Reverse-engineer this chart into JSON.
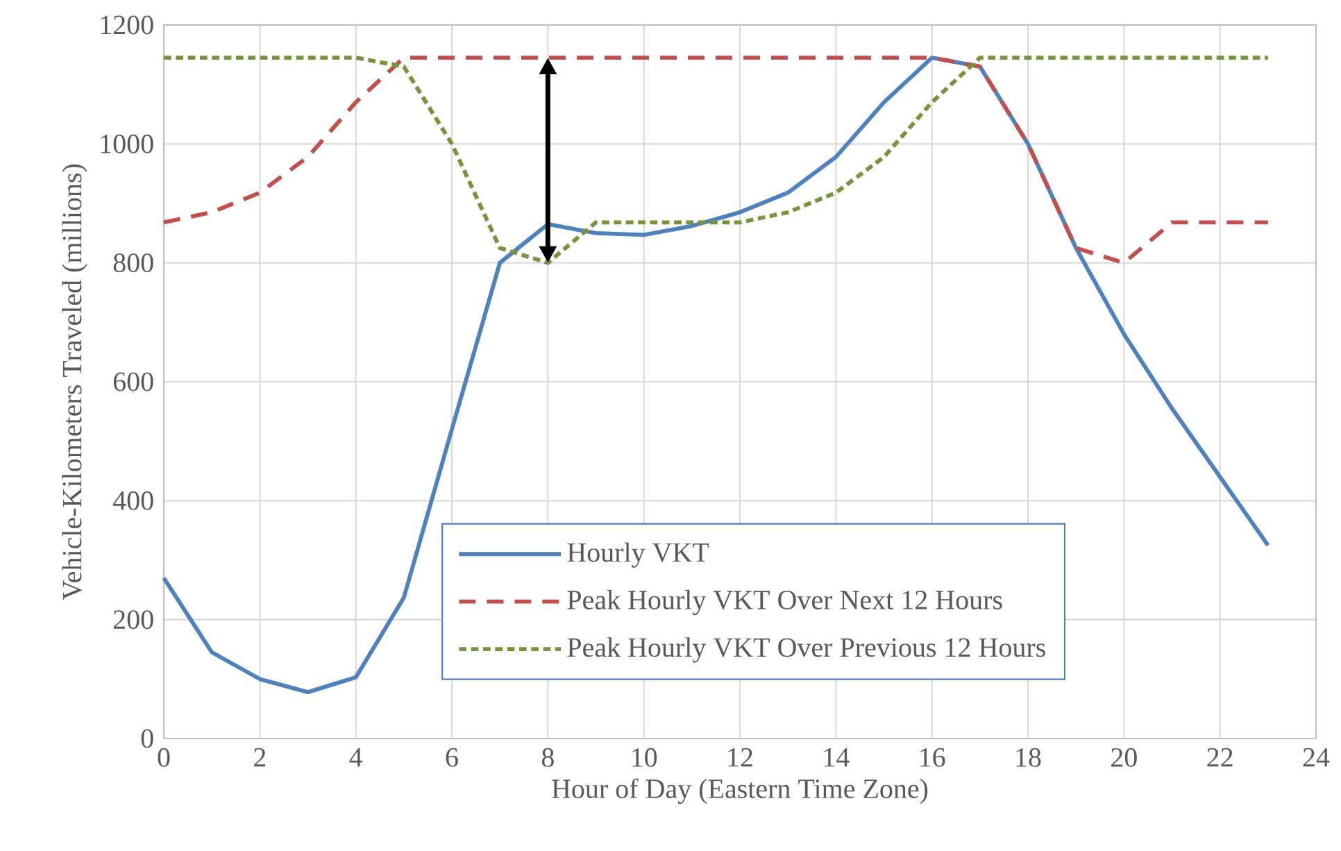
{
  "chart_data": {
    "type": "line",
    "xlabel": "Hour of Day (Eastern Time Zone)",
    "ylabel": "Vehicle-Kilometers Traveled (millions)",
    "x": [
      0,
      1,
      2,
      3,
      4,
      5,
      6,
      7,
      8,
      9,
      10,
      11,
      12,
      13,
      14,
      15,
      16,
      17,
      18,
      19,
      20,
      21,
      22,
      23
    ],
    "series": [
      {
        "name": "Hourly VKT",
        "color": "#4f81bd",
        "line_style": "solid",
        "values": [
          270,
          145,
          100,
          78,
          103,
          237,
          520,
          800,
          865,
          850,
          847,
          862,
          885,
          918,
          978,
          1070,
          1145,
          1130,
          1000,
          825,
          680,
          555,
          440,
          325
        ]
      },
      {
        "name": "Peak Hourly VKT Over Next 12 Hours",
        "color": "#c0504d",
        "line_style": "dashed",
        "values": [
          868,
          885,
          918,
          978,
          1070,
          1145,
          1145,
          1145,
          1145,
          1145,
          1145,
          1145,
          1145,
          1145,
          1145,
          1145,
          1145,
          1130,
          1000,
          825,
          800,
          868,
          868,
          868
        ]
      },
      {
        "name": "Peak Hourly VKT Over Previous 12 Hours",
        "color": "#77933c",
        "line_style": "dotted",
        "values": [
          1145,
          1145,
          1145,
          1145,
          1145,
          1130,
          1000,
          825,
          800,
          868,
          868,
          868,
          868,
          885,
          918,
          978,
          1070,
          1145,
          1145,
          1145,
          1145,
          1145,
          1145,
          1145
        ]
      }
    ],
    "xlim": [
      0,
      24
    ],
    "ylim": [
      0,
      1200
    ],
    "xticks": [
      0,
      2,
      4,
      6,
      8,
      10,
      12,
      14,
      16,
      18,
      20,
      22,
      24
    ],
    "yticks": [
      0,
      200,
      400,
      600,
      800,
      1000,
      1200
    ],
    "grid": true,
    "legend": "bottom",
    "marker": "none"
  }
}
